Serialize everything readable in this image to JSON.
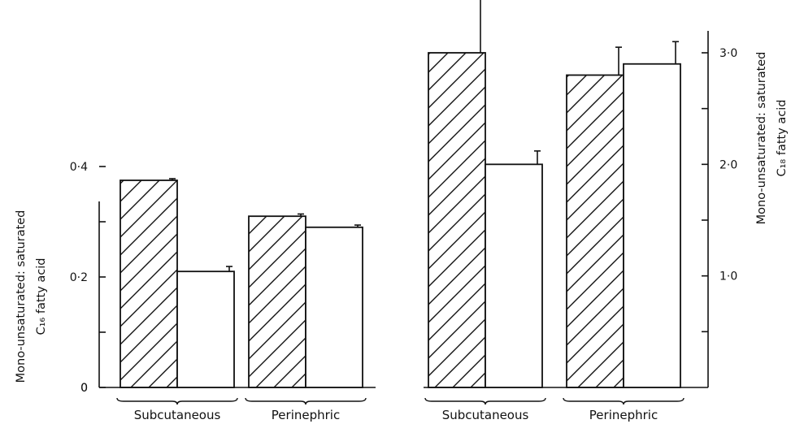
{
  "chart_data": [
    {
      "type": "bar",
      "categories": [
        "Subcutaneous",
        "Perinephric"
      ],
      "series": [
        {
          "values": [
            0.375,
            0.31
          ],
          "errors": [
            0.003,
            0.004
          ],
          "pattern": "hatched"
        },
        {
          "values": [
            0.21,
            0.29
          ],
          "errors": [
            0.009,
            0.004
          ],
          "pattern": "open"
        }
      ],
      "ylabel": "Mono-unsaturated: saturated C₁₆ fatty acid",
      "ylabel_lines": [
        "Mono-unsaturated: saturated",
        "C₁₆ fatty acid"
      ],
      "ylim": [
        0,
        0.4
      ],
      "yticks": [
        0,
        0.1,
        0.2,
        0.3,
        0.4
      ],
      "ytick_labels": [
        "0",
        "",
        "0·2",
        "",
        "0·4"
      ],
      "y_axis_side": "left",
      "grid": false,
      "legend": "none"
    },
    {
      "type": "bar",
      "categories": [
        "Subcutaneous",
        "Perinephric"
      ],
      "series": [
        {
          "values": [
            3.0,
            2.8
          ],
          "errors": [
            0.5,
            0.25
          ],
          "pattern": "hatched"
        },
        {
          "values": [
            2.0,
            2.9
          ],
          "errors": [
            0.12,
            0.2
          ],
          "pattern": "open"
        }
      ],
      "ylabel": "Mono-unsaturated: saturated C₁₈ fatty acid",
      "ylabel_lines": [
        "Mono-unsaturated: saturated",
        "C₁₈ fatty acid"
      ],
      "ylim": [
        0,
        3.0
      ],
      "yticks": [
        0.5,
        1.0,
        1.5,
        2.0,
        2.5,
        3.0
      ],
      "ytick_labels": [
        "",
        "1·0",
        "",
        "2·0",
        "",
        "3·0"
      ],
      "y_axis_side": "right",
      "grid": false,
      "legend": "none"
    }
  ]
}
